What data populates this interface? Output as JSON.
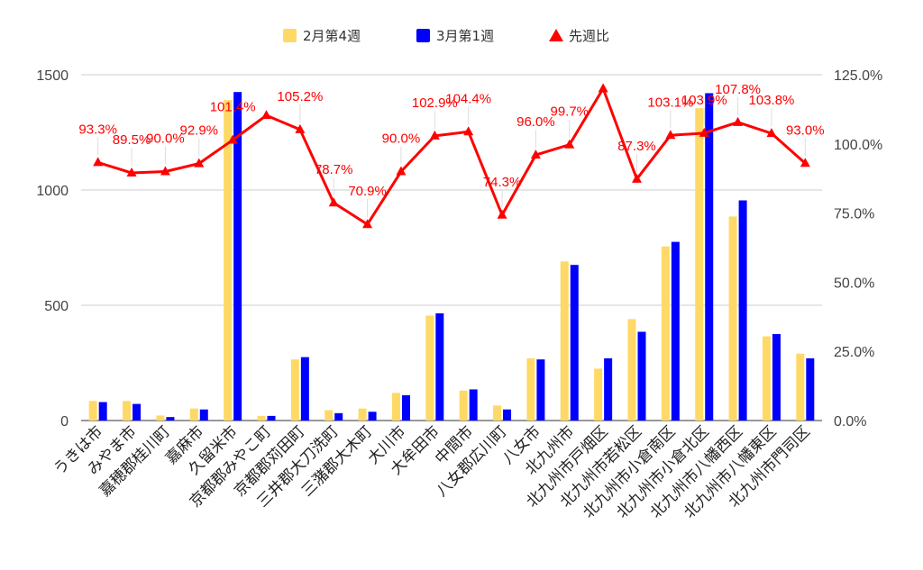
{
  "chart_data": {
    "type": "bar",
    "categories": [
      "うきは市",
      "みやま市",
      "嘉穂郡桂川町",
      "嘉麻市",
      "久留米市",
      "京都郡みやこ町",
      "京都郡苅田町",
      "三井郡大刀洗町",
      "三潴郡大木町",
      "大川市",
      "大牟田市",
      "中間市",
      "八女郡広川町",
      "八女市",
      "北九州市",
      "北九州市戸畑区",
      "北九州市若松区",
      "北九州市小倉南区",
      "北九州市小倉北区",
      "北九州市八幡西区",
      "北九州市八幡東区",
      "北九州市門司区"
    ],
    "series": [
      {
        "name": "2月第4週",
        "type": "bar",
        "axis": "left",
        "color": "#FFD966",
        "values": [
          85,
          85,
          22,
          52,
          1390,
          20,
          265,
          45,
          52,
          120,
          455,
          130,
          65,
          270,
          690,
          225,
          440,
          755,
          1355,
          885,
          365,
          290
        ]
      },
      {
        "name": "3月第1週",
        "type": "bar",
        "axis": "left",
        "color": "#0000FF",
        "values": [
          80,
          72,
          15,
          48,
          1425,
          20,
          275,
          32,
          38,
          110,
          465,
          135,
          48,
          265,
          675,
          270,
          385,
          775,
          1420,
          955,
          375,
          270
        ]
      },
      {
        "name": "先週比",
        "type": "line",
        "axis": "right",
        "color": "#FF0000",
        "values": [
          93.3,
          89.5,
          90.0,
          92.9,
          101.4,
          110.3,
          105.2,
          78.7,
          70.9,
          90.0,
          102.9,
          104.4,
          74.3,
          96.0,
          99.7,
          120.0,
          87.3,
          103.1,
          103.9,
          107.8,
          103.8,
          93.0
        ],
        "labels": [
          "93.3%",
          "89.5%",
          "90.0%",
          "92.9%",
          "101.4%",
          "",
          "105.2%",
          "78.7%",
          "70.9%",
          "90.0%",
          "102.9%",
          "104.4%",
          "74.3%",
          "96.0%",
          "99.7%",
          "",
          "87.3%",
          "103.1%",
          "103.9%",
          "107.8%",
          "103.8%",
          "93.0%"
        ]
      }
    ],
    "y_left": {
      "min": 0,
      "max": 1500,
      "ticks": [
        "0",
        "500",
        "1000",
        "1500"
      ]
    },
    "y_right": {
      "min": 0,
      "max": 125,
      "ticks": [
        "0.0%",
        "25.0%",
        "50.0%",
        "75.0%",
        "100.0%",
        "125.0%"
      ]
    },
    "legend": {
      "position": "top",
      "items": [
        "2月第4週",
        "3月第1週",
        "先週比"
      ]
    },
    "grid": true
  }
}
